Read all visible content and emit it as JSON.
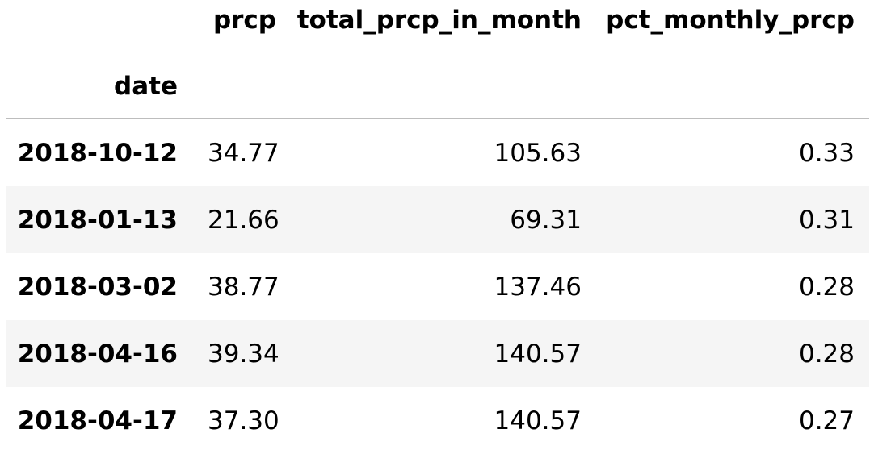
{
  "table": {
    "columns": [
      "prcp",
      "total_prcp_in_month",
      "pct_monthly_prcp"
    ],
    "index_name": "date",
    "rows": [
      {
        "date": "2018-10-12",
        "prcp": "34.77",
        "total_prcp_in_month": "105.63",
        "pct_monthly_prcp": "0.33"
      },
      {
        "date": "2018-01-13",
        "prcp": "21.66",
        "total_prcp_in_month": "69.31",
        "pct_monthly_prcp": "0.31"
      },
      {
        "date": "2018-03-02",
        "prcp": "38.77",
        "total_prcp_in_month": "137.46",
        "pct_monthly_prcp": "0.28"
      },
      {
        "date": "2018-04-16",
        "prcp": "39.34",
        "total_prcp_in_month": "140.57",
        "pct_monthly_prcp": "0.28"
      },
      {
        "date": "2018-04-17",
        "prcp": "37.30",
        "total_prcp_in_month": "140.57",
        "pct_monthly_prcp": "0.27"
      }
    ]
  },
  "colors": {
    "stripe": "#f5f5f5",
    "header_rule": "#bdbdbd",
    "text": "#000000"
  }
}
